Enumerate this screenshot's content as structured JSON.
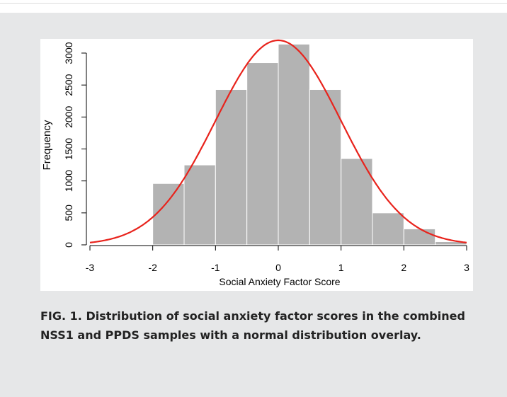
{
  "chart_data": {
    "type": "histogram",
    "bins": [
      -2,
      -1.5,
      -1,
      -0.5,
      0,
      0.5,
      1,
      1.5,
      2,
      2.5,
      3
    ],
    "values": [
      960,
      1250,
      2430,
      2850,
      3140,
      2430,
      1350,
      500,
      250,
      50
    ],
    "color": "#b3b3b3",
    "overlay": {
      "mean": 0,
      "sd": 1,
      "peak": 3200,
      "color": "#e8231c"
    },
    "xlim": [
      -3,
      3
    ],
    "xticks": [
      -3,
      -2,
      -1,
      0,
      1,
      2,
      3
    ],
    "ylim": [
      0,
      3000
    ],
    "yticks": [
      0,
      500,
      1000,
      1500,
      2000,
      2500,
      3000
    ],
    "xlabel": "Social Anxiety Factor Score",
    "ylabel": "Frequency",
    "caption": "FIG. 1. Distribution of social anxiety factor scores in the combined NSS1 and PPDS samples with a normal distribution overlay."
  }
}
